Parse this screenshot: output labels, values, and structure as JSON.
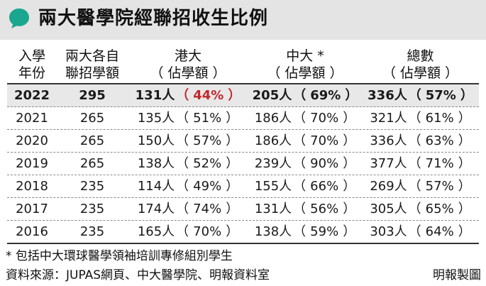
{
  "title": "兩大醫學院經聯招收生比例",
  "header": {
    "col1": [
      "入學",
      "年份"
    ],
    "col2": [
      "兩大各自",
      "聯招學額"
    ],
    "col3": [
      "港大",
      "（ 佔學額 ）"
    ],
    "col4": [
      "中大 *",
      "（ 佔學額 ）"
    ],
    "col5": [
      "總數",
      "（ 佔學額 ）"
    ]
  },
  "rows": [
    {
      "year": "2022",
      "quota": "295",
      "hku": "131人",
      "hku_pct": "44%",
      "cuhk": "205人",
      "cuhk_pct": "69%",
      "total": "336人",
      "total_pct": "57%"
    },
    {
      "year": "2021",
      "quota": "265",
      "hku": "135人",
      "hku_pct": "51%",
      "cuhk": "186人",
      "cuhk_pct": "70%",
      "total": "321人",
      "total_pct": "61%"
    },
    {
      "year": "2020",
      "quota": "265",
      "hku": "150人",
      "hku_pct": "57%",
      "cuhk": "186人",
      "cuhk_pct": "70%",
      "total": "336人",
      "total_pct": "63%"
    },
    {
      "year": "2019",
      "quota": "265",
      "hku": "138人",
      "hku_pct": "52%",
      "cuhk": "239人",
      "cuhk_pct": "90%",
      "total": "377人",
      "total_pct": "71%"
    },
    {
      "year": "2018",
      "quota": "235",
      "hku": "114人",
      "hku_pct": "49%",
      "cuhk": "155人",
      "cuhk_pct": "66%",
      "total": "269人",
      "total_pct": "57%"
    },
    {
      "year": "2017",
      "quota": "235",
      "hku": "174人",
      "hku_pct": "74%",
      "cuhk": "131人",
      "cuhk_pct": "56%",
      "total": "305人",
      "total_pct": "65%"
    },
    {
      "year": "2016",
      "quota": "235",
      "hku": "165人",
      "hku_pct": "70%",
      "cuhk": "138人",
      "cuhk_pct": "59%",
      "total": "303人",
      "total_pct": "64%"
    }
  ],
  "paren_open": "（",
  "paren_close": "）",
  "footnote": "* 包括中大環球醫學領袖培訓專修組別學生",
  "source": "資料來源：JUPAS網頁、中大醫學院、明報資料室",
  "credit": "明報製圖",
  "colors": {
    "title_bg": "#e4e4e4",
    "icon_green": "#1aa68f",
    "highlight_row": "#e8e8e8",
    "highlight_text": "#c0272d"
  }
}
